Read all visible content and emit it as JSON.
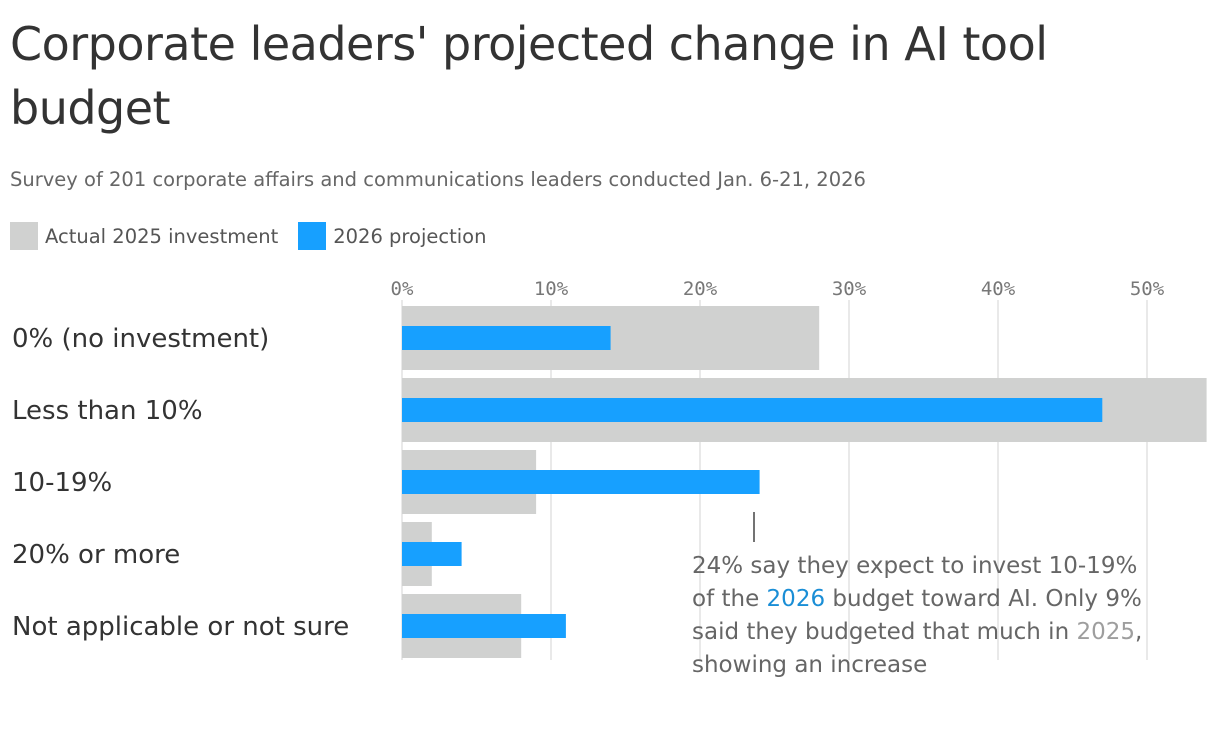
{
  "title": "Corporate leaders' projected change in AI tool budget",
  "subtitle": "Survey of 201 corporate affairs and communications leaders conducted Jan. 6-21, 2026",
  "colors": {
    "actual": "#d0d1d0",
    "projection": "#17a0ff",
    "grid": "#e2e2e2",
    "text": "#333333",
    "tick": "#777777"
  },
  "legend": [
    {
      "label": "Actual 2025 investment",
      "color": "#d0d1d0"
    },
    {
      "label": "2026 projection",
      "color": "#17a0ff"
    }
  ],
  "annotation": {
    "part1": "24% say they expect to invest 10-19% of the ",
    "year_2026": "2026",
    "part2": " budget toward AI. Only 9% said they budgeted that much in ",
    "year_2025": "2025",
    "part3": ", showing an increase"
  },
  "chart_data": {
    "type": "bar",
    "orientation": "horizontal",
    "categories": [
      "0% (no investment)",
      "Less than 10%",
      "10-19%",
      "20% or more",
      "Not applicable or not sure"
    ],
    "series": [
      {
        "name": "Actual 2025 investment",
        "values": [
          28,
          54,
          9,
          2,
          8
        ]
      },
      {
        "name": "2026 projection",
        "values": [
          14,
          47,
          24,
          4,
          11
        ]
      }
    ],
    "xlim": [
      0,
      54
    ],
    "xticks": [
      "0%",
      "10%",
      "20%",
      "30%",
      "40%",
      "50%"
    ],
    "xtick_values": [
      0,
      10,
      20,
      30,
      40,
      50
    ],
    "grid": true,
    "legend_position": "top-left"
  }
}
